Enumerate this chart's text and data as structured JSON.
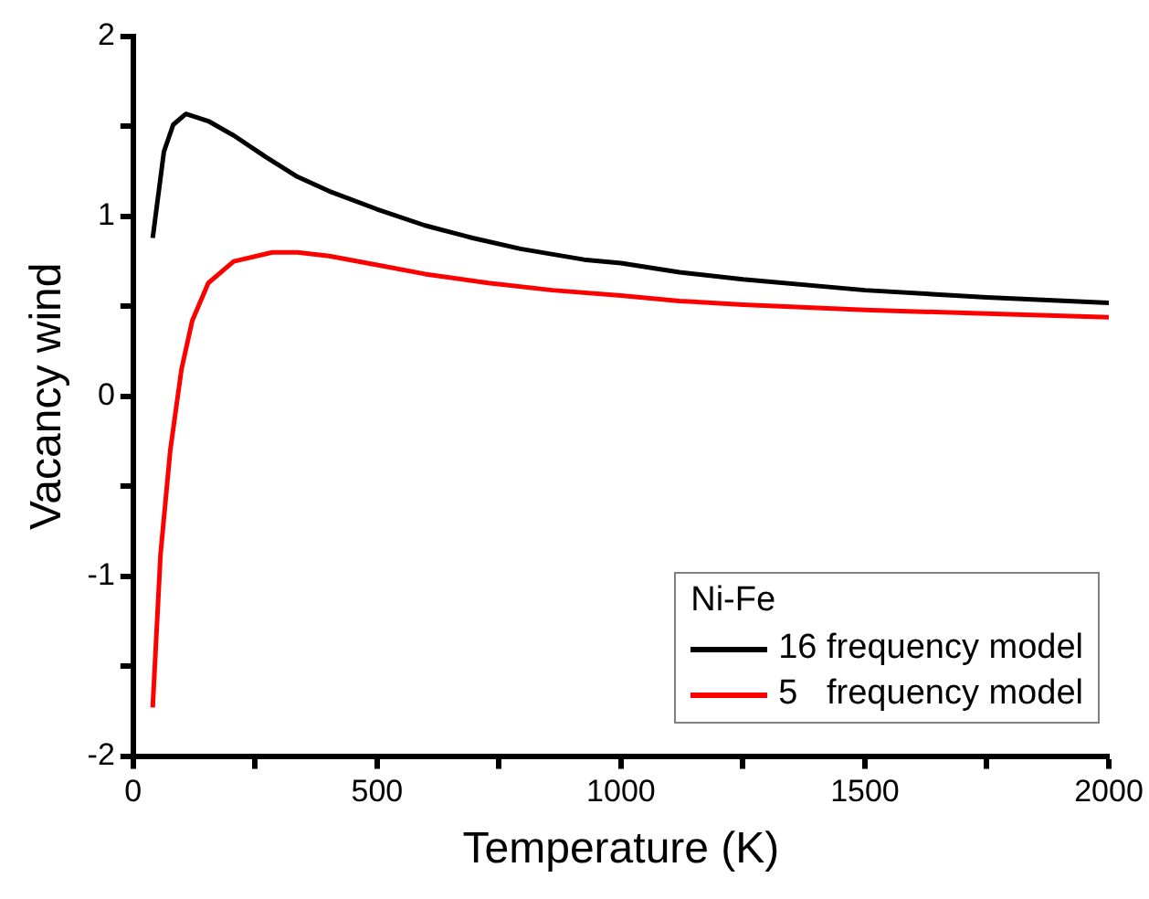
{
  "chart_data": {
    "type": "line",
    "xlabel": "Temperature (K)",
    "ylabel": "Vacancy wind",
    "legend_title": "Ni-Fe",
    "legend": "bottom right",
    "grid": false,
    "marker": "none",
    "line_style": "solid",
    "xlim": [
      0,
      2000
    ],
    "xticks": [
      0,
      {
        "value": 250,
        "label": null
      },
      500,
      {
        "value": 750,
        "label": null
      },
      1000,
      {
        "value": 1250,
        "label": null
      },
      1500,
      {
        "value": 1750,
        "label": null
      },
      2000
    ],
    "ylim": [
      -2,
      2
    ],
    "yticks": [
      -2,
      {
        "value": -1.5,
        "label": null
      },
      -1,
      {
        "value": -0.5,
        "label": null
      },
      0,
      {
        "value": 0.5,
        "label": null
      },
      1,
      {
        "value": 1.5,
        "label": null
      },
      2
    ],
    "series": [
      {
        "name": "16 frequency model",
        "color": "#000000",
        "x": [
          40,
          63,
          82,
          108,
          154,
          206,
          272,
          337,
          402,
          500,
          598,
          696,
          794,
          924,
          1000,
          1120,
          1250,
          1500,
          1750,
          2000
        ],
        "values": [
          0.88,
          1.36,
          1.51,
          1.57,
          1.53,
          1.45,
          1.33,
          1.22,
          1.14,
          1.04,
          0.95,
          0.88,
          0.82,
          0.76,
          0.74,
          0.69,
          0.65,
          0.59,
          0.55,
          0.52
        ]
      },
      {
        "name": "5   frequency model",
        "color": "#ff0000",
        "x": [
          40,
          56,
          76,
          99,
          121,
          154,
          206,
          285,
          337,
          402,
          500,
          598,
          728,
          859,
          1000,
          1120,
          1250,
          1500,
          1750,
          2000
        ],
        "values": [
          -1.73,
          -0.88,
          -0.3,
          0.15,
          0.42,
          0.63,
          0.75,
          0.8,
          0.8,
          0.78,
          0.73,
          0.68,
          0.63,
          0.59,
          0.56,
          0.53,
          0.51,
          0.48,
          0.46,
          0.44
        ]
      }
    ]
  }
}
